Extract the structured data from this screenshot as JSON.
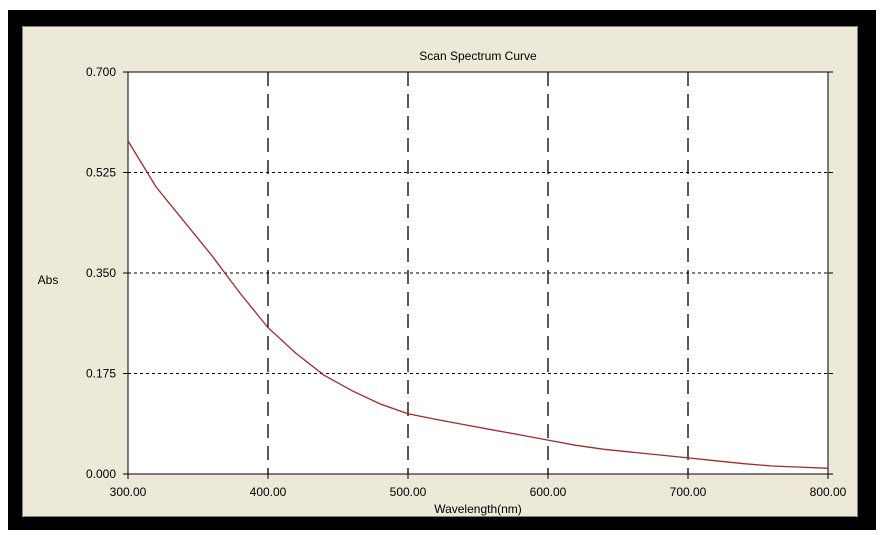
{
  "chart_data": {
    "type": "line",
    "title": "Scan Spectrum Curve",
    "xlabel": "Wavelength(nm)",
    "ylabel": "Abs",
    "xlim": [
      300,
      800
    ],
    "ylim": [
      0,
      0.7
    ],
    "x_ticks": [
      "300.00",
      "400.00",
      "500.00",
      "600.00",
      "700.00",
      "800.00"
    ],
    "y_ticks": [
      "0.000",
      "0.175",
      "0.350",
      "0.525",
      "0.700"
    ],
    "grid": true,
    "legend": "none",
    "colors": {
      "line": "#a52a2a",
      "panel": "#ece9d8",
      "frame": "#000000"
    },
    "series": [
      {
        "x": [
          300,
          310,
          320,
          340,
          360,
          380,
          400,
          420,
          440,
          460,
          480,
          500,
          520,
          540,
          560,
          580,
          600,
          620,
          640,
          660,
          680,
          700,
          720,
          740,
          760,
          780,
          800
        ],
        "y": [
          0.58,
          0.54,
          0.5,
          0.44,
          0.38,
          0.315,
          0.255,
          0.21,
          0.172,
          0.145,
          0.122,
          0.105,
          0.095,
          0.086,
          0.077,
          0.068,
          0.059,
          0.05,
          0.043,
          0.038,
          0.033,
          0.028,
          0.023,
          0.018,
          0.014,
          0.012,
          0.01
        ]
      }
    ]
  }
}
